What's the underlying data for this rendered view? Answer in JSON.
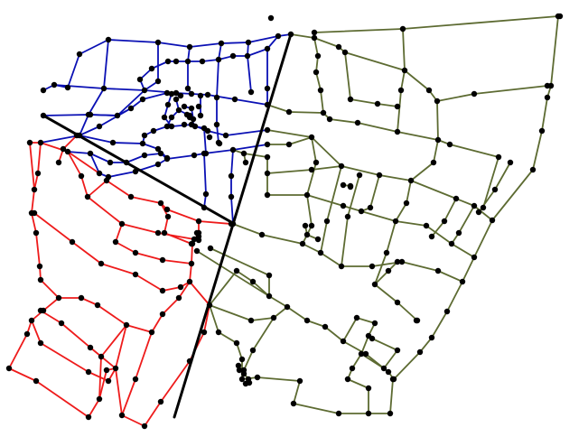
{
  "figure": {
    "type": "partitioned-network-map",
    "colors": {
      "background": "#ffffff",
      "node": "#000000",
      "divider": "#000000"
    },
    "partitions": [
      {
        "id": "blue",
        "color": "#0a10b4"
      },
      {
        "id": "red",
        "color": "#ee1b1b"
      },
      {
        "id": "green",
        "color": "#5d6b32"
      }
    ]
  }
}
